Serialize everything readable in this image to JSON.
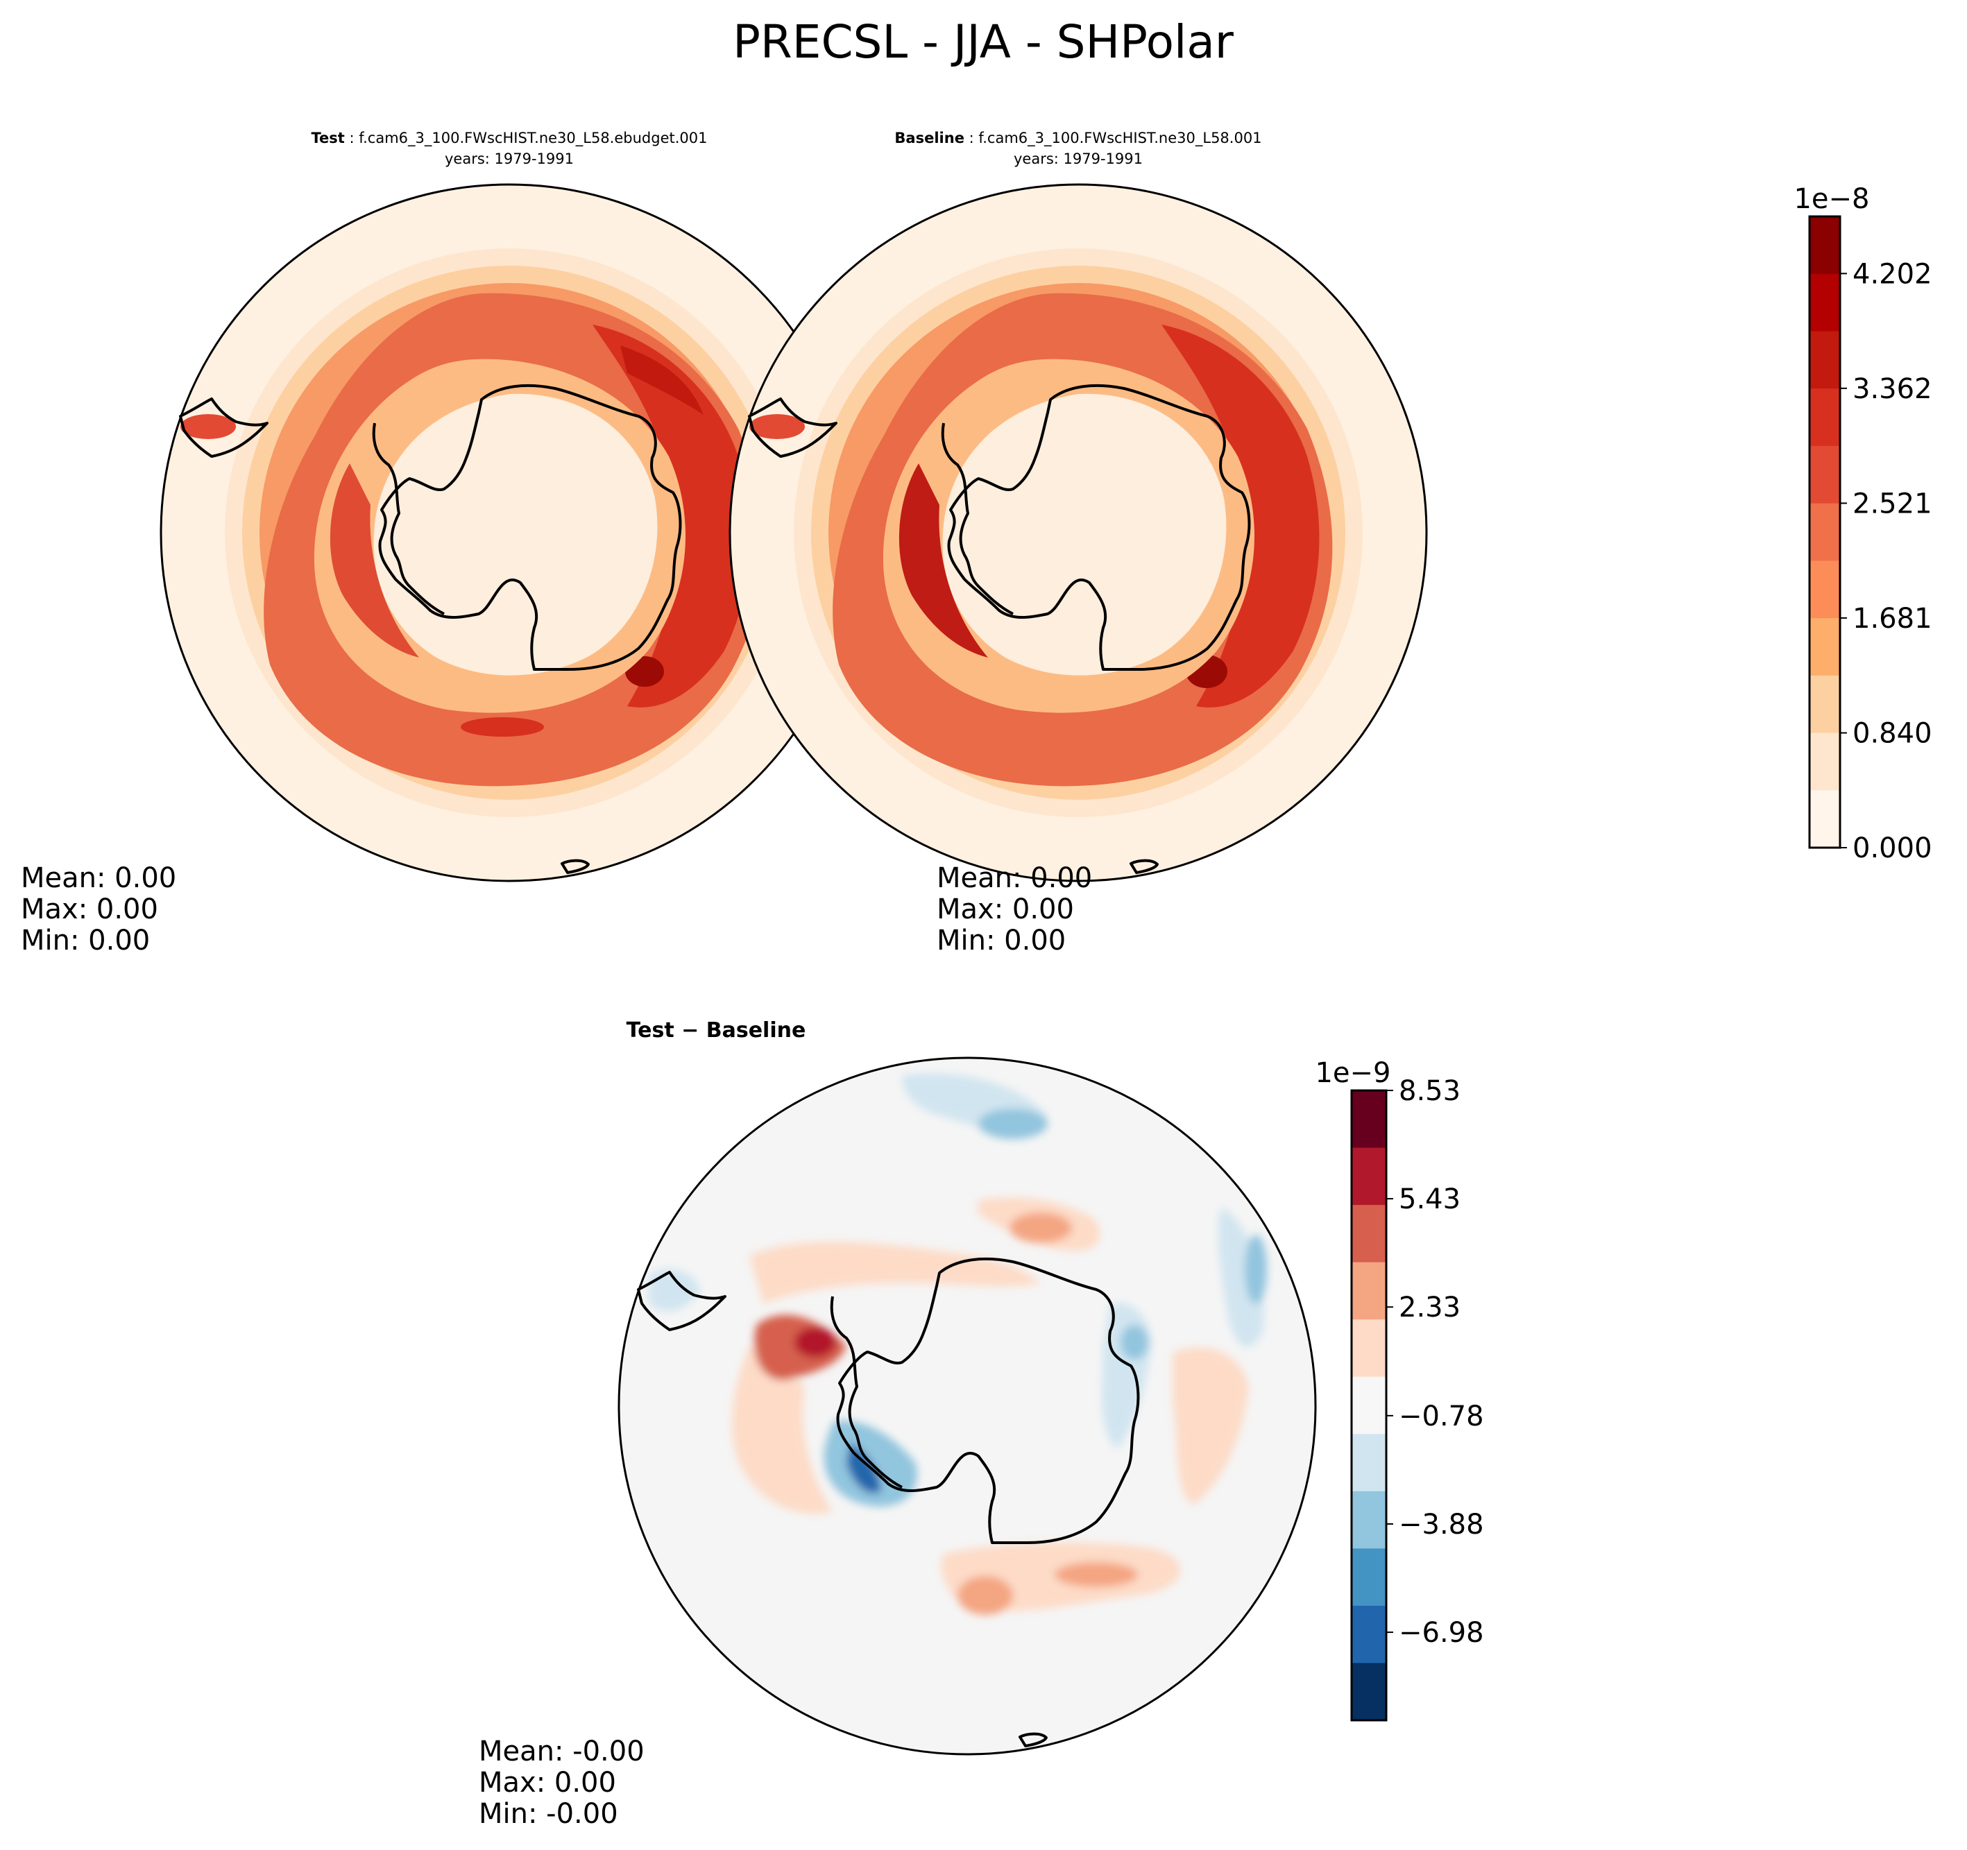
{
  "figure_title": "PRECSL - JJA - SHPolar",
  "panels": {
    "test": {
      "label": "Test",
      "case": "f.cam6_3_100.FWscHIST.ne30_L58.ebudget.001",
      "years": "years: 1979-1991",
      "stats": [
        "Mean:  0.00",
        "Max:  0.00",
        "Min:  0.00"
      ]
    },
    "baseline": {
      "label": "Baseline",
      "case": "f.cam6_3_100.FWscHIST.ne30_L58.001",
      "years": "years: 1979-1991",
      "stats": [
        "Mean:  0.00",
        "Max:  0.00",
        "Min:  0.00"
      ]
    },
    "diff": {
      "label": "Test − Baseline",
      "stats": [
        "Mean: -0.00",
        "Max:  0.00",
        "Min: -0.00"
      ]
    }
  },
  "colorbar_abs": {
    "exponent": "1e−8",
    "ticks": [
      "0.000",
      "0.840",
      "1.681",
      "2.521",
      "3.362",
      "4.202"
    ],
    "colors": [
      "#fff5eb",
      "#fee6ce",
      "#fdd0a2",
      "#fdae6b",
      "#fc8d59",
      "#f0704a",
      "#e34a33",
      "#d7301f",
      "#c21a0e",
      "#b30000",
      "#8b0000"
    ]
  },
  "colorbar_diff": {
    "exponent": "1e−9",
    "ticks": [
      "8.53",
      "5.43",
      "2.33",
      "−0.78",
      "−3.88",
      "−6.98"
    ],
    "colors": [
      "#67001f",
      "#b2182b",
      "#d6604d",
      "#f4a582",
      "#fddbc7",
      "#f7f7f7",
      "#d1e5f0",
      "#92c5de",
      "#4393c3",
      "#2166ac",
      "#053061"
    ]
  },
  "chart_data": [
    {
      "type": "heatmap",
      "title": "Test: f.cam6_3_100.FWscHIST.ne30_L58.ebudget.001",
      "variable": "PRECSL",
      "season": "JJA",
      "region": "SHPolar",
      "years": "1979-1991",
      "scale": "1e-8",
      "levels": [
        0.0,
        0.42,
        0.84,
        1.26,
        1.681,
        2.101,
        2.521,
        2.941,
        3.362,
        3.782,
        4.202,
        4.62
      ],
      "mean": 0.0,
      "max": 0.0,
      "min": 0.0
    },
    {
      "type": "heatmap",
      "title": "Baseline: f.cam6_3_100.FWscHIST.ne30_L58.001",
      "variable": "PRECSL",
      "season": "JJA",
      "region": "SHPolar",
      "years": "1979-1991",
      "scale": "1e-8",
      "levels": [
        0.0,
        0.42,
        0.84,
        1.26,
        1.681,
        2.101,
        2.521,
        2.941,
        3.362,
        3.782,
        4.202,
        4.62
      ],
      "mean": 0.0,
      "max": 0.0,
      "min": 0.0
    },
    {
      "type": "heatmap",
      "title": "Test − Baseline",
      "variable": "PRECSL difference",
      "scale": "1e-9",
      "levels": [
        -8.53,
        -6.98,
        -5.43,
        -3.88,
        -2.33,
        -0.78,
        0.78,
        2.33,
        3.88,
        5.43,
        6.98,
        8.53
      ],
      "mean": -0.0,
      "max": 0.0,
      "min": -0.0
    }
  ]
}
